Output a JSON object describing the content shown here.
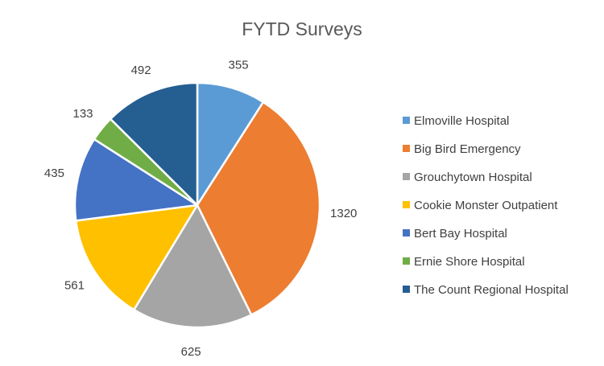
{
  "chart_data": {
    "type": "pie",
    "title": "FYTD Surveys",
    "legend_position": "right",
    "categories": [
      "Elmoville Hospital",
      "Big Bird Emergency",
      "Grouchytown Hospital",
      "Cookie Monster Outpatient",
      "Bert Bay Hospital",
      "Ernie Shore Hospital",
      "The Count Regional Hospital"
    ],
    "values": [
      355,
      1320,
      625,
      561,
      435,
      133,
      492
    ],
    "colors": [
      "#5B9BD5",
      "#ED7D31",
      "#A5A5A5",
      "#FFC000",
      "#4472C4",
      "#70AD47",
      "#255E91"
    ]
  }
}
